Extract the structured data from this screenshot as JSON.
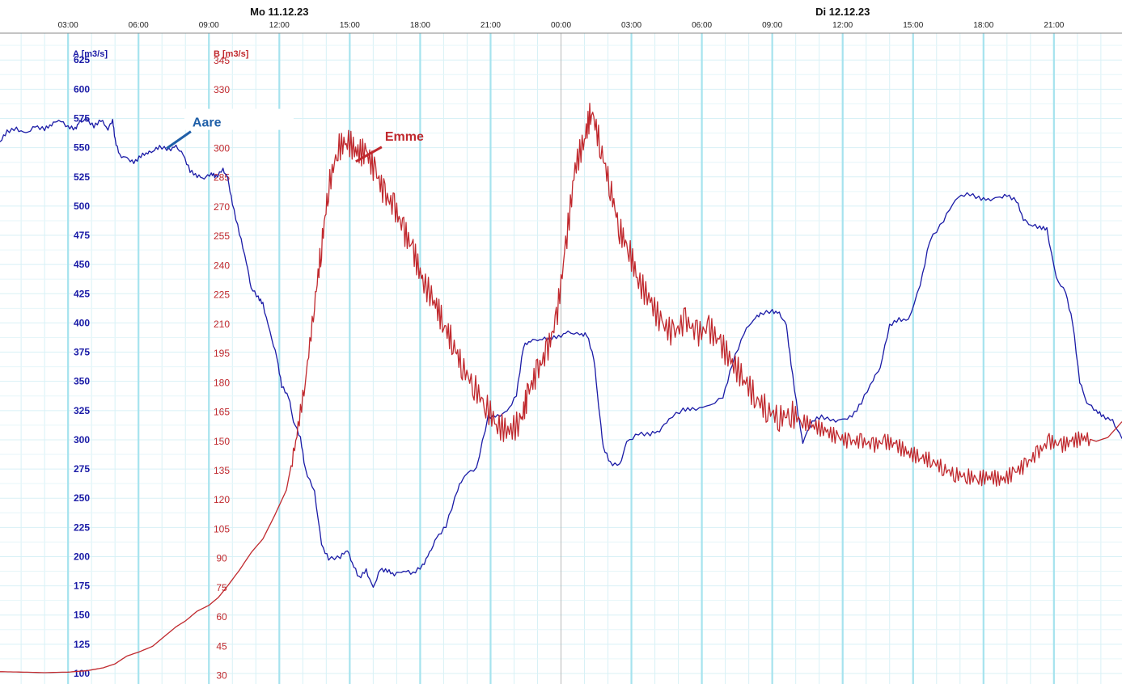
{
  "chart_data": {
    "type": "line",
    "x_unit": "hours from Mo 11.12.23 00:00",
    "days": [
      {
        "label": "Mo 11.12.23",
        "at_hour": 12
      },
      {
        "label": "Di 12.12.23",
        "at_hour": 36
      }
    ],
    "time_ticks": [
      {
        "hour": 3,
        "label": "03:00"
      },
      {
        "hour": 6,
        "label": "06:00"
      },
      {
        "hour": 9,
        "label": "09:00"
      },
      {
        "hour": 12,
        "label": "12:00"
      },
      {
        "hour": 15,
        "label": "15:00"
      },
      {
        "hour": 18,
        "label": "18:00"
      },
      {
        "hour": 21,
        "label": "21:00"
      },
      {
        "hour": 24,
        "label": "00:00"
      },
      {
        "hour": 27,
        "label": "03:00"
      },
      {
        "hour": 30,
        "label": "06:00"
      },
      {
        "hour": 33,
        "label": "09:00"
      },
      {
        "hour": 36,
        "label": "12:00"
      },
      {
        "hour": 39,
        "label": "15:00"
      },
      {
        "hour": 42,
        "label": "18:00"
      },
      {
        "hour": 45,
        "label": "21:00"
      }
    ],
    "xlim": [
      0.1,
      47.9
    ],
    "axis_a": {
      "title": "A [m3/s]",
      "ticks": [
        625,
        600,
        575,
        550,
        525,
        500,
        475,
        450,
        425,
        400,
        375,
        350,
        325,
        300,
        275,
        250,
        225,
        200,
        175,
        150,
        125,
        100
      ],
      "ylim": [
        91,
        648
      ]
    },
    "axis_b": {
      "title": "B [m3/s]",
      "ticks": [
        345,
        330,
        315,
        300,
        285,
        270,
        255,
        240,
        225,
        210,
        195,
        180,
        165,
        150,
        135,
        120,
        105,
        90,
        75,
        60,
        45,
        30
      ],
      "ylim": [
        25.7,
        359
      ]
    },
    "series": [
      {
        "name": "Aare",
        "axis": "A",
        "color": "#1a1aa6",
        "label_at": {
          "hour": 8.3,
          "value": 568
        },
        "points": [
          [
            0.1,
            555
          ],
          [
            0.4,
            564
          ],
          [
            0.8,
            566
          ],
          [
            1.2,
            562
          ],
          [
            1.6,
            568
          ],
          [
            2,
            566
          ],
          [
            2.3,
            570
          ],
          [
            2.6,
            574
          ],
          [
            3,
            568
          ],
          [
            3.3,
            566
          ],
          [
            3.5,
            572
          ],
          [
            3.8,
            574
          ],
          [
            4.1,
            568
          ],
          [
            4.4,
            574
          ],
          [
            4.7,
            566
          ],
          [
            4.9,
            574
          ],
          [
            5,
            557
          ],
          [
            5.2,
            543
          ],
          [
            5.5,
            541
          ],
          [
            5.8,
            537
          ],
          [
            6.1,
            543
          ],
          [
            6.4,
            546
          ],
          [
            6.6,
            547
          ],
          [
            6.9,
            551
          ],
          [
            7.3,
            548
          ],
          [
            7.6,
            551
          ],
          [
            7.9,
            544
          ],
          [
            8.2,
            530
          ],
          [
            8.5,
            526
          ],
          [
            8.8,
            524
          ],
          [
            9.1,
            528
          ],
          [
            9.3,
            525
          ],
          [
            9.6,
            531
          ],
          [
            9.8,
            524
          ],
          [
            10,
            502
          ],
          [
            10.3,
            477
          ],
          [
            10.6,
            452
          ],
          [
            10.8,
            430
          ],
          [
            11.1,
            422
          ],
          [
            11.3,
            416
          ],
          [
            11.6,
            392
          ],
          [
            11.9,
            370
          ],
          [
            12.1,
            346
          ],
          [
            12.4,
            337
          ],
          [
            12.6,
            316
          ],
          [
            12.9,
            302
          ],
          [
            13.1,
            275
          ],
          [
            13.5,
            255
          ],
          [
            13.8,
            210
          ],
          [
            14.1,
            198
          ],
          [
            14.6,
            200
          ],
          [
            14.9,
            206
          ],
          [
            15.1,
            195
          ],
          [
            15.4,
            182
          ],
          [
            15.7,
            188
          ],
          [
            16.0,
            173
          ],
          [
            16.3,
            189
          ],
          [
            16.6,
            188
          ],
          [
            16.9,
            185
          ],
          [
            17.3,
            188
          ],
          [
            17.7,
            186
          ],
          [
            18.1,
            192
          ],
          [
            18.4,
            203
          ],
          [
            18.7,
            216
          ],
          [
            19.1,
            226
          ],
          [
            19.6,
            258
          ],
          [
            19.9,
            270
          ],
          [
            20.4,
            276
          ],
          [
            20.9,
            320
          ],
          [
            21.3,
            320
          ],
          [
            21.7,
            324
          ],
          [
            22.1,
            338
          ],
          [
            22.4,
            380
          ],
          [
            22.7,
            385
          ],
          [
            23.1,
            386
          ],
          [
            23.5,
            387
          ],
          [
            23.9,
            388
          ],
          [
            24.3,
            392
          ],
          [
            24.8,
            390
          ],
          [
            25.1,
            390
          ],
          [
            25.4,
            370
          ],
          [
            25.6,
            330
          ],
          [
            25.8,
            294
          ],
          [
            26.1,
            280
          ],
          [
            26.5,
            278
          ],
          [
            26.8,
            298
          ],
          [
            27.3,
            305
          ],
          [
            27.8,
            305
          ],
          [
            28.2,
            308
          ],
          [
            28.6,
            318
          ],
          [
            29.2,
            326
          ],
          [
            29.6,
            326
          ],
          [
            30.2,
            328
          ],
          [
            30.9,
            336
          ],
          [
            31.3,
            365
          ],
          [
            31.8,
            392
          ],
          [
            32.2,
            403
          ],
          [
            32.5,
            408
          ],
          [
            33.0,
            410
          ],
          [
            33.3,
            408
          ],
          [
            33.6,
            398
          ],
          [
            33.8,
            365
          ],
          [
            34.1,
            322
          ],
          [
            34.3,
            298
          ],
          [
            34.7,
            316
          ],
          [
            35.1,
            320
          ],
          [
            35.6,
            316
          ],
          [
            36.0,
            317
          ],
          [
            36.4,
            320
          ],
          [
            36.8,
            332
          ],
          [
            37.3,
            352
          ],
          [
            37.6,
            362
          ],
          [
            38.0,
            398
          ],
          [
            38.4,
            403
          ],
          [
            38.8,
            402
          ],
          [
            39.3,
            432
          ],
          [
            39.7,
            470
          ],
          [
            40.3,
            488
          ],
          [
            40.8,
            506
          ],
          [
            41.3,
            511
          ],
          [
            41.8,
            507
          ],
          [
            42.2,
            505
          ],
          [
            42.6,
            507
          ],
          [
            43.0,
            509
          ],
          [
            43.4,
            505
          ],
          [
            43.7,
            489
          ],
          [
            44.0,
            484
          ],
          [
            44.4,
            482
          ],
          [
            44.7,
            480
          ],
          [
            45.1,
            438
          ],
          [
            45.5,
            426
          ],
          [
            45.8,
            400
          ],
          [
            46.1,
            350
          ],
          [
            46.4,
            332
          ],
          [
            46.8,
            325
          ],
          [
            47.1,
            320
          ],
          [
            47.5,
            316
          ],
          [
            47.9,
            301
          ]
        ]
      },
      {
        "name": "Emme",
        "axis": "B",
        "color": "#c0282d",
        "label_at": {
          "hour": 16.5,
          "value": 304
        },
        "points": [
          [
            0.1,
            32
          ],
          [
            1,
            31.8
          ],
          [
            2,
            31.5
          ],
          [
            3,
            31.8
          ],
          [
            3.8,
            32.5
          ],
          [
            4.5,
            34
          ],
          [
            5,
            36
          ],
          [
            5.5,
            40
          ],
          [
            6,
            42
          ],
          [
            6.6,
            45
          ],
          [
            7.1,
            50
          ],
          [
            7.6,
            55
          ],
          [
            8.0,
            58
          ],
          [
            8.5,
            63
          ],
          [
            9.0,
            66
          ],
          [
            9.4,
            70
          ],
          [
            9.8,
            76
          ],
          [
            10.3,
            84
          ],
          [
            10.8,
            93
          ],
          [
            11.3,
            100
          ],
          [
            11.8,
            112
          ],
          [
            12.3,
            125
          ],
          [
            12.7,
            150
          ],
          [
            13.1,
            180
          ],
          [
            13.5,
            220
          ],
          [
            13.8,
            250
          ],
          [
            14.1,
            280
          ],
          [
            14.5,
            300
          ],
          [
            14.9,
            304
          ],
          [
            15.3,
            298
          ],
          [
            15.7,
            298
          ],
          [
            16.1,
            288
          ],
          [
            16.5,
            276
          ],
          [
            16.9,
            270
          ],
          [
            17.3,
            258
          ],
          [
            17.7,
            248
          ],
          [
            18.1,
            232
          ],
          [
            18.6,
            222
          ],
          [
            19.0,
            210
          ],
          [
            19.4,
            200
          ],
          [
            19.8,
            188
          ],
          [
            20.3,
            178
          ],
          [
            20.8,
            168
          ],
          [
            21.3,
            158
          ],
          [
            21.8,
            155
          ],
          [
            22.3,
            160
          ],
          [
            22.6,
            175
          ],
          [
            23.0,
            186
          ],
          [
            23.4,
            196
          ],
          [
            23.8,
            212
          ],
          [
            24.2,
            250
          ],
          [
            24.6,
            290
          ],
          [
            25.0,
            305
          ],
          [
            25.3,
            320
          ],
          [
            25.7,
            300
          ],
          [
            26.1,
            280
          ],
          [
            26.5,
            258
          ],
          [
            26.9,
            248
          ],
          [
            27.3,
            232
          ],
          [
            27.8,
            222
          ],
          [
            28.3,
            210
          ],
          [
            28.8,
            205
          ],
          [
            29.3,
            212
          ],
          [
            29.8,
            205
          ],
          [
            30.3,
            208
          ],
          [
            30.8,
            200
          ],
          [
            31.3,
            190
          ],
          [
            31.8,
            182
          ],
          [
            32.3,
            172
          ],
          [
            32.8,
            166
          ],
          [
            33.3,
            162
          ],
          [
            33.8,
            164
          ],
          [
            34.3,
            160
          ],
          [
            34.8,
            158
          ],
          [
            35.3,
            155
          ],
          [
            35.8,
            152
          ],
          [
            36.3,
            150
          ],
          [
            36.8,
            150
          ],
          [
            37.3,
            148
          ],
          [
            37.8,
            150
          ],
          [
            38.3,
            148
          ],
          [
            38.8,
            144
          ],
          [
            39.3,
            142
          ],
          [
            39.8,
            140
          ],
          [
            40.3,
            136
          ],
          [
            40.8,
            133
          ],
          [
            41.3,
            132
          ],
          [
            41.8,
            131
          ],
          [
            42.3,
            132
          ],
          [
            42.8,
            130
          ],
          [
            43.3,
            134
          ],
          [
            43.8,
            138
          ],
          [
            44.3,
            144
          ],
          [
            44.8,
            150
          ],
          [
            45.3,
            148
          ],
          [
            45.8,
            150
          ],
          [
            46.3,
            152
          ],
          [
            46.8,
            150
          ],
          [
            47.3,
            152
          ],
          [
            47.9,
            160
          ]
        ]
      }
    ],
    "grid": true
  }
}
